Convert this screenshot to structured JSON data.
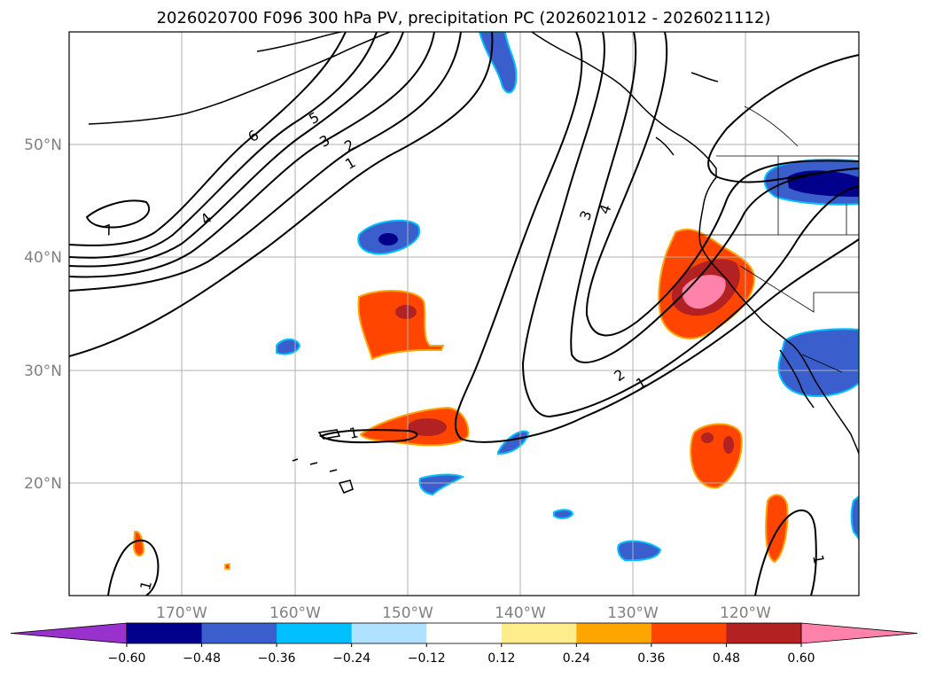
{
  "title": "2026020700 F096 300 hPa PV, precipitation PC (2026021012 - 2026021112)",
  "map": {
    "lon_ticks": [
      "170°W",
      "160°W",
      "150°W",
      "140°W",
      "130°W",
      "120°W"
    ],
    "lat_ticks": [
      "50°N",
      "40°N",
      "30°N",
      "20°N"
    ],
    "grid": true
  },
  "pv_contours": {
    "color": "#000000",
    "labels": [
      "7",
      "6",
      "5",
      "4",
      "3",
      "2",
      "1",
      "3",
      "4",
      "2",
      "1",
      "1",
      "1"
    ]
  },
  "colorbar": {
    "orientation": "horizontal",
    "extend": "both",
    "tick_labels": [
      "−0.60",
      "−0.48",
      "−0.36",
      "−0.24",
      "−0.12",
      "0.12",
      "0.24",
      "0.36",
      "0.48",
      "0.60"
    ],
    "colors": [
      "#9932cc",
      "#00008b",
      "#3a5fcd",
      "#00bfff",
      "#b0e2ff",
      "#ffffff",
      "#ffec8b",
      "#ffa500",
      "#ff4500",
      "#b22222",
      "#ff82ab"
    ]
  }
}
